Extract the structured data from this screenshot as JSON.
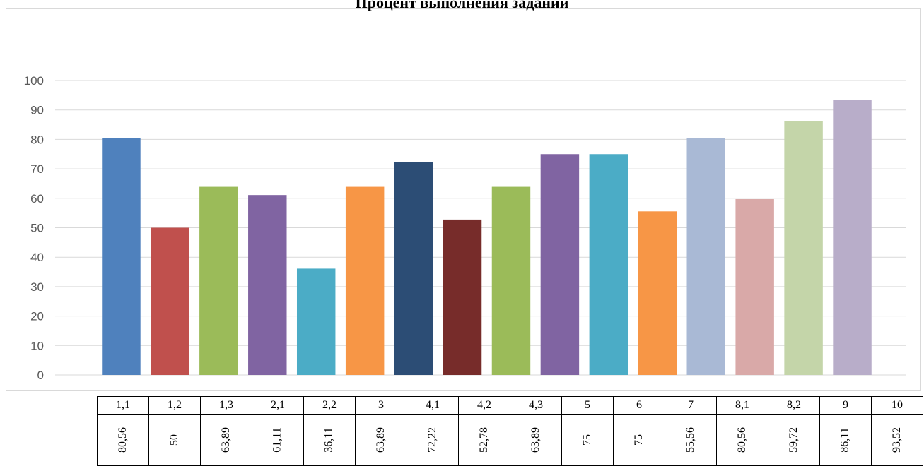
{
  "chart_data": {
    "type": "bar",
    "title": "Процент выполнения заданий",
    "categories": [
      "1,1",
      "1,2",
      "1,3",
      "2,1",
      "2,2",
      "3",
      "4,1",
      "4,2",
      "4,3",
      "5",
      "6",
      "7",
      "8,1",
      "8,2",
      "9",
      "10"
    ],
    "values": [
      80.56,
      50,
      63.89,
      61.11,
      36.11,
      63.89,
      72.22,
      52.78,
      63.89,
      75,
      75,
      55.56,
      80.56,
      59.72,
      86.11,
      93.52
    ],
    "value_labels": [
      "80,56",
      "50",
      "63,89",
      "61,11",
      "36,11",
      "63,89",
      "72,22",
      "52,78",
      "63,89",
      "75",
      "75",
      "55,56",
      "80,56",
      "59,72",
      "86,11",
      "93,52"
    ],
    "colors": [
      "#4f81bd",
      "#c0504d",
      "#9bbb59",
      "#8064a2",
      "#4bacc6",
      "#f79646",
      "#2c4d75",
      "#772c2a",
      "#9bbb59",
      "#8064a2",
      "#4bacc6",
      "#f79646",
      "#a9b9d5",
      "#d9a9a8",
      "#c4d5a9",
      "#b8adc9"
    ],
    "ylim": [
      0,
      100
    ],
    "yticks": [
      0,
      10,
      20,
      30,
      40,
      50,
      60,
      70,
      80,
      90,
      100
    ],
    "grid": true,
    "legend": "none",
    "xlabel": "",
    "ylabel": ""
  }
}
